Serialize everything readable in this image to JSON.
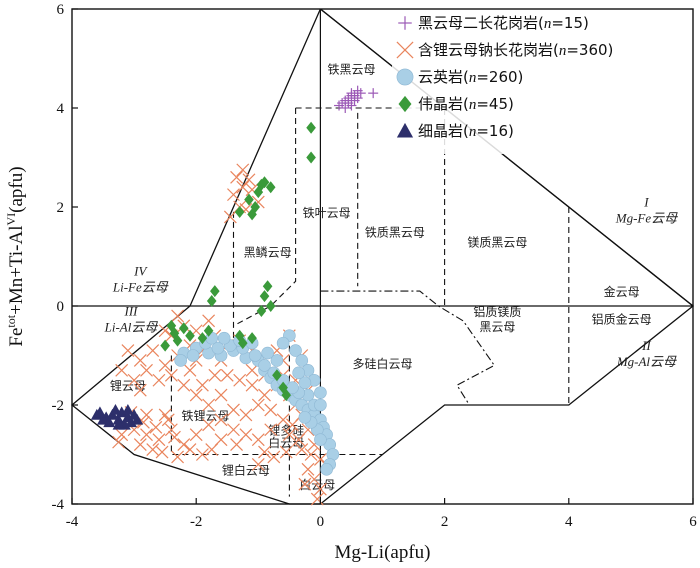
{
  "chart_data": {
    "type": "scatter",
    "xlabel": "Mg-Li(apfu)",
    "ylabel": "Fe<sup>tot</sup>+Mn+Ti-Al<sup>VI</sup>(apfu)",
    "xlim": [
      -4,
      6
    ],
    "ylim": [
      -4,
      6
    ],
    "x_ticks": [
      "-4",
      "-2",
      "0",
      "2",
      "4",
      "6"
    ],
    "y_ticks": [
      "-4",
      "-2",
      "0",
      "2",
      "4",
      "6"
    ],
    "grid": false,
    "legend_position": "top-right",
    "series": [
      {
        "name": "黑云母二长花岗岩(n=15)",
        "label_plain": "黑云母二长花岗岩(",
        "label_n": "n",
        "label_rest": "=15)",
        "marker": "plus",
        "color": "#9b59b6",
        "points": [
          [
            0.35,
            4.1
          ],
          [
            0.4,
            4.15
          ],
          [
            0.45,
            4.2
          ],
          [
            0.5,
            4.3
          ],
          [
            0.55,
            4.25
          ],
          [
            0.6,
            4.35
          ],
          [
            0.5,
            4.05
          ],
          [
            0.45,
            4.1
          ],
          [
            0.55,
            4.15
          ],
          [
            0.4,
            4.0
          ],
          [
            0.6,
            4.2
          ],
          [
            0.5,
            4.25
          ],
          [
            0.65,
            4.3
          ],
          [
            0.85,
            4.3
          ],
          [
            0.3,
            4.05
          ]
        ]
      },
      {
        "name": "含锂云母钠长花岗岩(n=360)",
        "label_plain": "含锂云母钠长花岗岩(",
        "label_n": "n",
        "label_rest": "=360)",
        "marker": "x",
        "color": "#e9845c",
        "points": [
          [
            -1.35,
            2.6
          ],
          [
            -1.25,
            2.4
          ],
          [
            -1.3,
            2.0
          ],
          [
            -1.45,
            1.8
          ],
          [
            -1.15,
            2.55
          ],
          [
            -1.4,
            2.25
          ],
          [
            -1.2,
            1.95
          ],
          [
            -1.1,
            2.35
          ],
          [
            -1.25,
            2.75
          ],
          [
            -1.0,
            2.1
          ],
          [
            -2.0,
            -0.5
          ],
          [
            -2.2,
            -0.4
          ],
          [
            -2.4,
            -0.6
          ],
          [
            -2.1,
            -0.8
          ],
          [
            -1.9,
            -0.9
          ],
          [
            -1.8,
            -0.3
          ],
          [
            -2.3,
            -0.2
          ],
          [
            -2.5,
            -0.5
          ],
          [
            -1.7,
            -0.6
          ],
          [
            -2.0,
            -1.1
          ],
          [
            -1.6,
            -1.1
          ],
          [
            -1.5,
            -1.4
          ],
          [
            -1.3,
            -1.5
          ],
          [
            -1.1,
            -1.6
          ],
          [
            -0.9,
            -1.8
          ],
          [
            -0.7,
            -1.6
          ],
          [
            -0.5,
            -1.8
          ],
          [
            -0.4,
            -2.0
          ],
          [
            -0.3,
            -2.2
          ],
          [
            -0.2,
            -2.5
          ],
          [
            -0.1,
            -2.8
          ],
          [
            0.0,
            -3.1
          ],
          [
            -0.2,
            -3.3
          ],
          [
            -0.1,
            -3.5
          ],
          [
            0.0,
            -3.7
          ],
          [
            -0.3,
            -2.9
          ],
          [
            -0.5,
            -2.6
          ],
          [
            -0.6,
            -2.3
          ],
          [
            -0.8,
            -2.5
          ],
          [
            -1.0,
            -2.7
          ],
          [
            -1.2,
            -2.6
          ],
          [
            -1.4,
            -2.5
          ],
          [
            -1.6,
            -2.7
          ],
          [
            -1.8,
            -2.4
          ],
          [
            -2.0,
            -2.6
          ],
          [
            -2.2,
            -2.8
          ],
          [
            -2.4,
            -2.5
          ],
          [
            -2.6,
            -2.7
          ],
          [
            -2.8,
            -2.6
          ],
          [
            -3.0,
            -2.5
          ],
          [
            -3.2,
            -2.6
          ],
          [
            -2.9,
            -2.8
          ],
          [
            -2.7,
            -2.9
          ],
          [
            -3.1,
            -2.3
          ],
          [
            -2.8,
            -2.2
          ],
          [
            -2.5,
            -2.2
          ],
          [
            -2.9,
            -1.7
          ],
          [
            -2.6,
            -1.5
          ],
          [
            -2.8,
            -1.3
          ],
          [
            -2.5,
            -1.2
          ],
          [
            -2.3,
            -1.0
          ],
          [
            -2.7,
            -0.9
          ],
          [
            -2.9,
            -1.1
          ],
          [
            -3.0,
            -1.5
          ],
          [
            -3.2,
            -1.3
          ],
          [
            -3.1,
            -0.9
          ],
          [
            -2.4,
            -1.4
          ],
          [
            -2.2,
            -1.6
          ],
          [
            -2.0,
            -1.8
          ],
          [
            -1.8,
            -2.0
          ],
          [
            -1.6,
            -1.8
          ],
          [
            -1.4,
            -2.1
          ],
          [
            -1.2,
            -2.2
          ],
          [
            -1.0,
            -2.0
          ],
          [
            -0.8,
            -2.1
          ],
          [
            -0.6,
            -1.4
          ],
          [
            -0.4,
            -1.5
          ],
          [
            -0.2,
            -1.7
          ],
          [
            -1.0,
            -3.2
          ],
          [
            -0.9,
            -2.95
          ],
          [
            -1.9,
            -3.0
          ],
          [
            -2.1,
            -2.9
          ],
          [
            -2.3,
            -3.05
          ],
          [
            -0.5,
            -0.6
          ],
          [
            -0.7,
            -0.9
          ],
          [
            -0.6,
            -1.1
          ],
          [
            -0.3,
            -1.0
          ],
          [
            -1.5,
            -0.8
          ],
          [
            -1.3,
            -0.7
          ],
          [
            -1.1,
            -0.9
          ],
          [
            -0.95,
            -1.1
          ],
          [
            -1.7,
            -1.4
          ],
          [
            -1.9,
            -1.6
          ],
          [
            -2.1,
            -1.3
          ],
          [
            -0.15,
            -3.0
          ],
          [
            0.05,
            -2.6
          ],
          [
            -0.35,
            -2.7
          ],
          [
            0.1,
            -3.2
          ],
          [
            -0.05,
            -3.9
          ],
          [
            -0.25,
            -3.6
          ],
          [
            -0.1,
            -2.3
          ],
          [
            -0.45,
            -2.4
          ],
          [
            -1.1,
            -1.3
          ],
          [
            -0.9,
            -1.4
          ],
          [
            -1.6,
            -2.3
          ],
          [
            -1.35,
            -2.8
          ],
          [
            -1.75,
            -2.9
          ],
          [
            -2.45,
            -2.3
          ],
          [
            -2.65,
            -2.45
          ],
          [
            -2.85,
            -2.35
          ],
          [
            -3.05,
            -2.15
          ],
          [
            -3.25,
            -2.75
          ],
          [
            -2.55,
            -2.95
          ],
          [
            -2.35,
            -2.65
          ],
          [
            -0.75,
            -3.05
          ],
          [
            -0.55,
            -2.95
          ]
        ]
      },
      {
        "name": "云英岩(n=260)",
        "label_plain": "云英岩(",
        "label_n": "n",
        "label_rest": "=260)",
        "marker": "circle",
        "color": "#a9cfe6",
        "points": [
          [
            -2.2,
            -0.95
          ],
          [
            -2.0,
            -0.85
          ],
          [
            -1.8,
            -0.95
          ],
          [
            -1.6,
            -1.0
          ],
          [
            -1.4,
            -0.9
          ],
          [
            -1.2,
            -1.05
          ],
          [
            -1.0,
            -1.1
          ],
          [
            -0.9,
            -1.3
          ],
          [
            -0.8,
            -1.45
          ],
          [
            -0.7,
            -1.6
          ],
          [
            -0.6,
            -1.7
          ],
          [
            -0.5,
            -1.8
          ],
          [
            -0.4,
            -1.9
          ],
          [
            -0.3,
            -2.0
          ],
          [
            -0.2,
            -2.1
          ],
          [
            -0.1,
            -2.2
          ],
          [
            0.0,
            -2.3
          ],
          [
            0.05,
            -2.45
          ],
          [
            0.1,
            -2.6
          ],
          [
            0.15,
            -2.8
          ],
          [
            0.2,
            -3.0
          ],
          [
            0.15,
            -3.2
          ],
          [
            0.1,
            -3.3
          ],
          [
            -0.1,
            -2.0
          ],
          [
            -0.2,
            -1.8
          ],
          [
            -0.35,
            -1.75
          ],
          [
            -0.45,
            -1.65
          ],
          [
            -0.6,
            -1.5
          ],
          [
            -0.75,
            -1.35
          ],
          [
            -0.9,
            -1.2
          ],
          [
            -1.05,
            -1.0
          ],
          [
            -1.25,
            -0.85
          ],
          [
            -1.45,
            -0.8
          ],
          [
            -1.65,
            -0.85
          ],
          [
            -1.85,
            -0.75
          ],
          [
            -2.05,
            -1.0
          ],
          [
            -2.25,
            -1.1
          ],
          [
            -0.5,
            -0.6
          ],
          [
            -0.6,
            -0.75
          ],
          [
            -0.4,
            -0.9
          ],
          [
            -0.3,
            -1.1
          ],
          [
            -0.2,
            -1.3
          ],
          [
            -0.1,
            -1.5
          ],
          [
            0.0,
            -1.75
          ],
          [
            0.0,
            -2.0
          ],
          [
            -0.05,
            -2.5
          ],
          [
            0.0,
            -2.7
          ],
          [
            -0.15,
            -2.35
          ],
          [
            -0.25,
            -2.25
          ],
          [
            -0.7,
            -1.1
          ],
          [
            -0.85,
            -0.95
          ],
          [
            -1.1,
            -0.75
          ],
          [
            -1.3,
            -0.7
          ],
          [
            -1.55,
            -0.65
          ],
          [
            -1.75,
            -0.65
          ],
          [
            -0.25,
            -1.55
          ],
          [
            -0.35,
            -1.35
          ]
        ]
      },
      {
        "name": "伟晶岩(n=45)",
        "label_plain": "伟晶岩(",
        "label_n": "n",
        "label_rest": "=45)",
        "marker": "diamond",
        "color": "#3a9a3a",
        "points": [
          [
            -0.15,
            3.6
          ],
          [
            -0.15,
            3.0
          ],
          [
            -1.0,
            2.3
          ],
          [
            -1.05,
            2.0
          ],
          [
            -0.95,
            2.45
          ],
          [
            -0.8,
            2.4
          ],
          [
            -1.1,
            1.85
          ],
          [
            -1.3,
            1.9
          ],
          [
            -1.15,
            2.15
          ],
          [
            -0.9,
            2.5
          ],
          [
            -1.7,
            0.3
          ],
          [
            -1.75,
            0.1
          ],
          [
            -0.85,
            0.4
          ],
          [
            -0.9,
            0.2
          ],
          [
            -0.95,
            -0.1
          ],
          [
            -0.8,
            0.0
          ],
          [
            -2.4,
            -0.4
          ],
          [
            -2.2,
            -0.45
          ],
          [
            -2.1,
            -0.6
          ],
          [
            -2.3,
            -0.7
          ],
          [
            -2.5,
            -0.8
          ],
          [
            -2.35,
            -0.55
          ],
          [
            -1.8,
            -0.5
          ],
          [
            -1.9,
            -0.65
          ],
          [
            -1.3,
            -0.6
          ],
          [
            -1.25,
            -0.75
          ],
          [
            -1.1,
            -0.65
          ],
          [
            -0.7,
            -1.4
          ],
          [
            -0.6,
            -1.65
          ],
          [
            -0.55,
            -1.8
          ]
        ]
      },
      {
        "name": "细晶岩(n=16)",
        "label_plain": "细晶岩(",
        "label_n": "n",
        "label_rest": "=16)",
        "marker": "triangle",
        "color": "#2d2f6b",
        "points": [
          [
            -3.6,
            -2.2
          ],
          [
            -3.45,
            -2.25
          ],
          [
            -3.35,
            -2.2
          ],
          [
            -3.25,
            -2.3
          ],
          [
            -3.2,
            -2.15
          ],
          [
            -3.1,
            -2.25
          ],
          [
            -3.05,
            -2.35
          ],
          [
            -3.3,
            -2.1
          ],
          [
            -3.5,
            -2.3
          ],
          [
            -3.15,
            -2.4
          ],
          [
            -3.0,
            -2.2
          ],
          [
            -3.4,
            -2.35
          ],
          [
            -3.55,
            -2.15
          ],
          [
            -3.25,
            -2.4
          ],
          [
            -3.1,
            -2.1
          ],
          [
            -2.95,
            -2.3
          ]
        ]
      }
    ],
    "region_labels": [
      {
        "text": "铁黑云母",
        "x": 0.5,
        "y": 4.7
      },
      {
        "text": "铁叶云母",
        "x": 0.1,
        "y": 1.8
      },
      {
        "text": "黑鳞云母",
        "x": -0.85,
        "y": 1.0
      },
      {
        "text": "铁质黑云母",
        "x": 1.2,
        "y": 1.4
      },
      {
        "text": "镁质黑云母",
        "x": 2.85,
        "y": 1.2
      },
      {
        "text": "金云母",
        "x": 4.85,
        "y": 0.2
      },
      {
        "text": "铝质镁质",
        "x": 2.85,
        "y": -0.2
      },
      {
        "text": "黑云母",
        "x": 2.85,
        "y": -0.5
      },
      {
        "text": "铝质金云母",
        "x": 4.85,
        "y": -0.35
      },
      {
        "text": "多硅白云母",
        "x": 1.0,
        "y": -1.25
      },
      {
        "text": "锂云母",
        "x": -3.1,
        "y": -1.7
      },
      {
        "text": "铁锂云母",
        "x": -1.85,
        "y": -2.3
      },
      {
        "text": "锂多硅",
        "x": -0.55,
        "y": -2.6
      },
      {
        "text": "白云母",
        "x": -0.55,
        "y": -2.85
      },
      {
        "text": "锂白云母",
        "x": -1.2,
        "y": -3.4
      },
      {
        "text": "白云母",
        "x": -0.05,
        "y": -3.7
      }
    ],
    "corner_labels": [
      {
        "roman": "I",
        "name": "Mg-Fe云母",
        "x": 5.25,
        "y": 1.85,
        "anchor": "middle"
      },
      {
        "roman": "II",
        "name": "Mg-Al云母",
        "x": 5.25,
        "y": -1.05,
        "anchor": "middle"
      },
      {
        "roman": "III",
        "name": "Li-Al云母",
        "x": -3.05,
        "y": -0.35,
        "anchor": "middle"
      },
      {
        "roman": "IV",
        "name": "Li-Fe云母",
        "x": -2.9,
        "y": 0.45,
        "anchor": "middle"
      }
    ]
  }
}
